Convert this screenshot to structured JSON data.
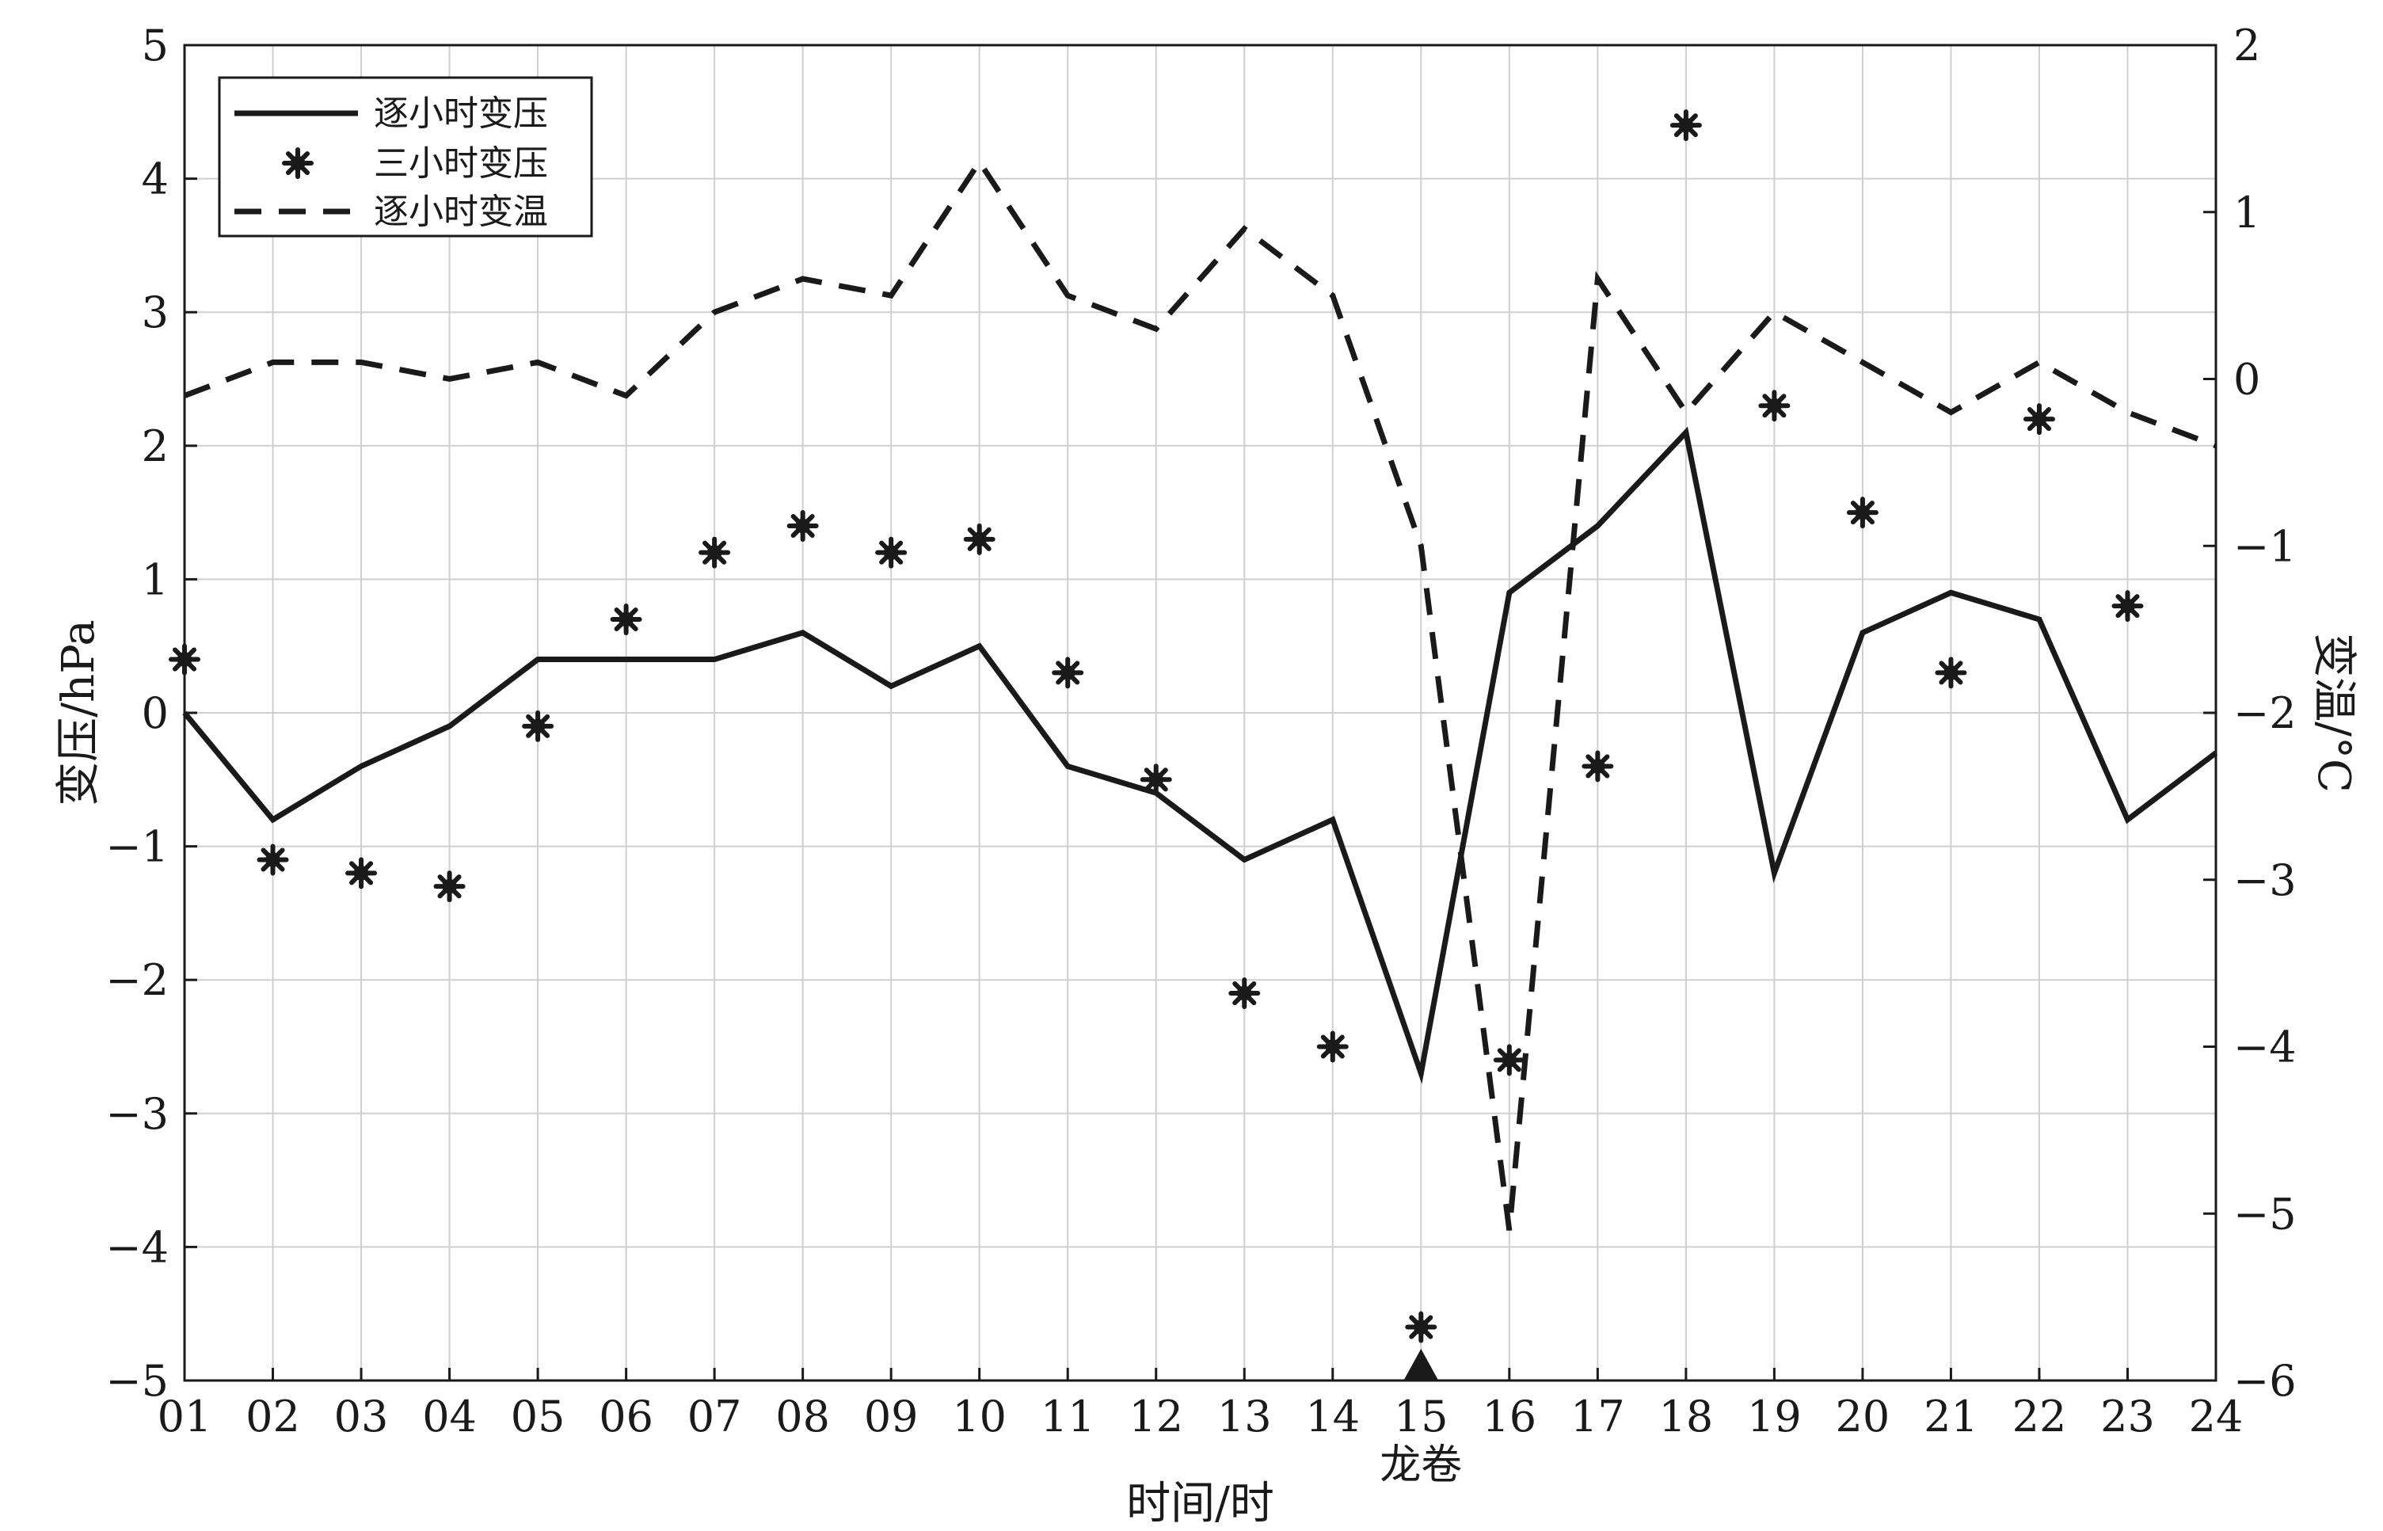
{
  "chart_data": {
    "type": "line",
    "xlabel": "时间/时",
    "ylabel": "变压/hPa",
    "y2label": "变温/°C",
    "categories": [
      "01",
      "02",
      "03",
      "04",
      "05",
      "06",
      "07",
      "08",
      "09",
      "10",
      "11",
      "12",
      "13",
      "14",
      "15",
      "16",
      "17",
      "18",
      "19",
      "20",
      "21",
      "22",
      "23",
      "24"
    ],
    "ylim": [
      -5,
      5
    ],
    "yticks": [
      -5,
      -4,
      -3,
      -2,
      -1,
      0,
      1,
      2,
      3,
      4,
      5
    ],
    "y2lim": [
      -6,
      2
    ],
    "y2ticks": [
      -6,
      -5,
      -4,
      -3,
      -2,
      -1,
      0,
      1,
      2
    ],
    "grid": true,
    "legend_position": "top-left",
    "series": [
      {
        "name": "逐小时变压",
        "style": "solid",
        "axis": "left",
        "values": [
          0.0,
          -0.8,
          -0.4,
          -0.1,
          0.4,
          0.4,
          0.4,
          0.6,
          0.2,
          0.5,
          -0.4,
          -0.6,
          -1.1,
          -0.8,
          -2.7,
          0.9,
          1.4,
          2.1,
          -1.2,
          0.6,
          0.9,
          0.7,
          -0.8,
          -0.3
        ]
      },
      {
        "name": "三小时变压",
        "style": "asterisk",
        "axis": "left",
        "values": [
          0.4,
          -1.1,
          -1.2,
          -1.3,
          -0.1,
          0.7,
          1.2,
          1.4,
          1.2,
          1.3,
          0.3,
          -0.5,
          -2.1,
          -2.5,
          -4.6,
          -2.6,
          -0.4,
          4.4,
          2.3,
          1.5,
          0.3,
          2.2,
          0.8,
          null
        ]
      },
      {
        "name": "逐小时变温",
        "style": "dashed",
        "axis": "right",
        "values": [
          -0.1,
          0.1,
          0.1,
          0.0,
          0.1,
          -0.1,
          0.4,
          0.6,
          0.5,
          1.3,
          0.5,
          0.3,
          0.9,
          0.5,
          -1.0,
          -5.1,
          0.6,
          -0.2,
          0.4,
          0.1,
          -0.2,
          0.1,
          -0.2,
          -0.4
        ]
      }
    ],
    "annotations": [
      {
        "text": "龙卷",
        "x": "15",
        "marker": "triangle"
      }
    ],
    "colors": {
      "line": "#1a1a1a",
      "grid": "#cfcfcf",
      "background": "#ffffff"
    }
  }
}
